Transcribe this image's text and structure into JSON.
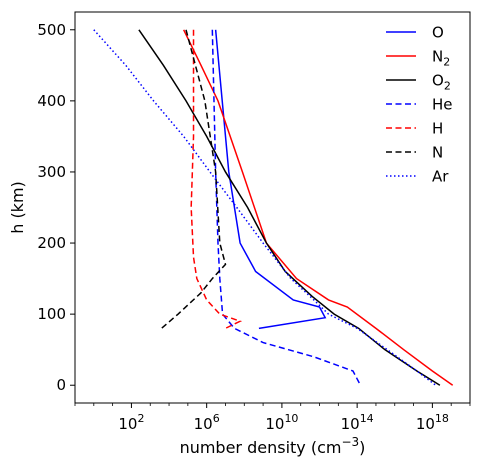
{
  "chart_data": {
    "type": "line",
    "title": "",
    "xlabel": "number density (cm",
    "xlabel_exp": "−3",
    "xlabel_close": ")",
    "ylabel": "h (km)",
    "xscale": "log",
    "xlim": [
      0.1,
      1e+20
    ],
    "ylim": [
      -25,
      525
    ],
    "x_ticks": [
      {
        "value": 100.0,
        "base": "10",
        "exp": "2"
      },
      {
        "value": 1000000.0,
        "base": "10",
        "exp": "6"
      },
      {
        "value": 10000000000.0,
        "base": "10",
        "exp": "10"
      },
      {
        "value": 100000000000000.0,
        "base": "10",
        "exp": "14"
      },
      {
        "value": 1e+18,
        "base": "10",
        "exp": "18"
      }
    ],
    "y_ticks": [
      0,
      100,
      200,
      300,
      400,
      500
    ],
    "grid": false,
    "legend_position": "top-right",
    "series": [
      {
        "name": "O",
        "sub": "",
        "color": "#0000ff",
        "style": "solid",
        "points": [
          [
            3000000.0,
            500
          ],
          [
            15000000.0,
            300
          ],
          [
            60000000.0,
            200
          ],
          [
            400000000.0,
            160
          ],
          [
            40000000000.0,
            120
          ],
          [
            1000000000000.0,
            110
          ],
          [
            2000000000000.0,
            95
          ],
          [
            600000000.0,
            80
          ]
        ]
      },
      {
        "name": "N",
        "sub": "2",
        "color": "#ff0000",
        "style": "solid",
        "points": [
          [
            60000.0,
            500
          ],
          [
            500000.0,
            450
          ],
          [
            4000000.0,
            400
          ],
          [
            80000000.0,
            300
          ],
          [
            1500000000.0,
            200
          ],
          [
            60000000000.0,
            150
          ],
          [
            3000000000000.0,
            120
          ],
          [
            30000000000000.0,
            110
          ],
          [
            1000000000000000.0,
            80
          ],
          [
            3e+16,
            50
          ],
          [
            1e+18,
            20
          ],
          [
            1.2e+19,
            0
          ]
        ]
      },
      {
        "name": "O",
        "sub": "2",
        "color": "#000000",
        "style": "solid",
        "points": [
          [
            250,
            500
          ],
          [
            5000.0,
            450
          ],
          [
            80000.0,
            400
          ],
          [
            1000000.0,
            350
          ],
          [
            10000000.0,
            300
          ],
          [
            150000000.0,
            250
          ],
          [
            1500000000.0,
            200
          ],
          [
            15000000000.0,
            160
          ],
          [
            400000000000.0,
            125
          ],
          [
            6000000000000.0,
            100
          ],
          [
            120000000000000.0,
            80
          ],
          [
            3000000000000000.0,
            50
          ],
          [
            1.5e+17,
            20
          ],
          [
            2.5e+18,
            0
          ]
        ]
      },
      {
        "name": "He",
        "sub": "",
        "color": "#0000ff",
        "style": "dashed",
        "points": [
          [
            2000000.0,
            500
          ],
          [
            3000000.0,
            300
          ],
          [
            4000000.0,
            200
          ],
          [
            5000000.0,
            150
          ],
          [
            7000000.0,
            100
          ],
          [
            30000000.0,
            80
          ],
          [
            1000000000.0,
            60
          ],
          [
            500000000000.0,
            40
          ],
          [
            60000000000000.0,
            20
          ],
          [
            150000000000000.0,
            0
          ]
        ]
      },
      {
        "name": "H",
        "sub": "",
        "color": "#ff0000",
        "style": "dashed",
        "points": [
          [
            200000.0,
            500
          ],
          [
            200000.0,
            350
          ],
          [
            150000.0,
            250
          ],
          [
            200000.0,
            180
          ],
          [
            300000.0,
            150
          ],
          [
            1000000.0,
            120
          ],
          [
            5000000.0,
            100
          ],
          [
            60000000.0,
            90
          ],
          [
            10000000.0,
            80
          ]
        ]
      },
      {
        "name": "N",
        "sub": "",
        "color": "#000000",
        "style": "dashed",
        "points": [
          [
            80000.0,
            500
          ],
          [
            800000.0,
            400
          ],
          [
            3000000.0,
            300
          ],
          [
            5000000.0,
            200
          ],
          [
            10000000.0,
            170
          ],
          [
            2000000.0,
            150
          ],
          [
            500000.0,
            130
          ],
          [
            30000.0,
            100
          ],
          [
            4000.0,
            80
          ]
        ]
      },
      {
        "name": "Ar",
        "sub": "",
        "color": "#0000ff",
        "style": "dotted",
        "points": [
          [
            1,
            500
          ],
          [
            50,
            450
          ],
          [
            1500.0,
            400
          ],
          [
            60000.0,
            350
          ],
          [
            1500000.0,
            300
          ],
          [
            40000000.0,
            250
          ],
          [
            1000000000.0,
            200
          ],
          [
            30000000000.0,
            150
          ],
          [
            500000000000.0,
            120
          ],
          [
            3000000000000.0,
            100
          ],
          [
            100000000000000.0,
            80
          ],
          [
            4000000000000000.0,
            50
          ],
          [
            1.5e+17,
            20
          ],
          [
            1.5e+18,
            0
          ]
        ]
      }
    ]
  }
}
